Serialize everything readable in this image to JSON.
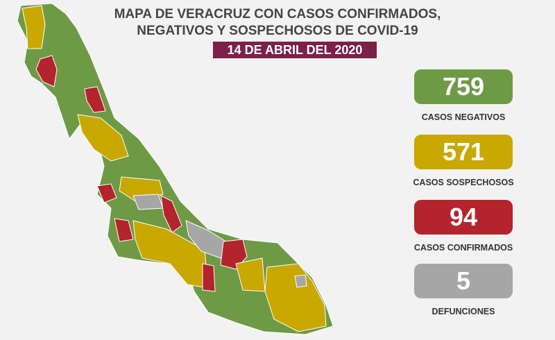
{
  "header": {
    "title_lines": [
      "MAPA DE VERACRUZ CON CASOS CONFIRMADOS,",
      "NEGATIVOS Y SOSPECHOSOS DE COVID-19"
    ],
    "date": "14 DE ABRIL DEL 2020"
  },
  "stats": [
    {
      "value": 759,
      "label": "CASOS NEGATIVOS"
    },
    {
      "value": 571,
      "label": "CASOS SOSPECHOSOS"
    },
    {
      "value": 94,
      "label": "CASOS CONFIRMADOS"
    },
    {
      "value": 5,
      "label": "DEFUNCIONES"
    }
  ]
}
